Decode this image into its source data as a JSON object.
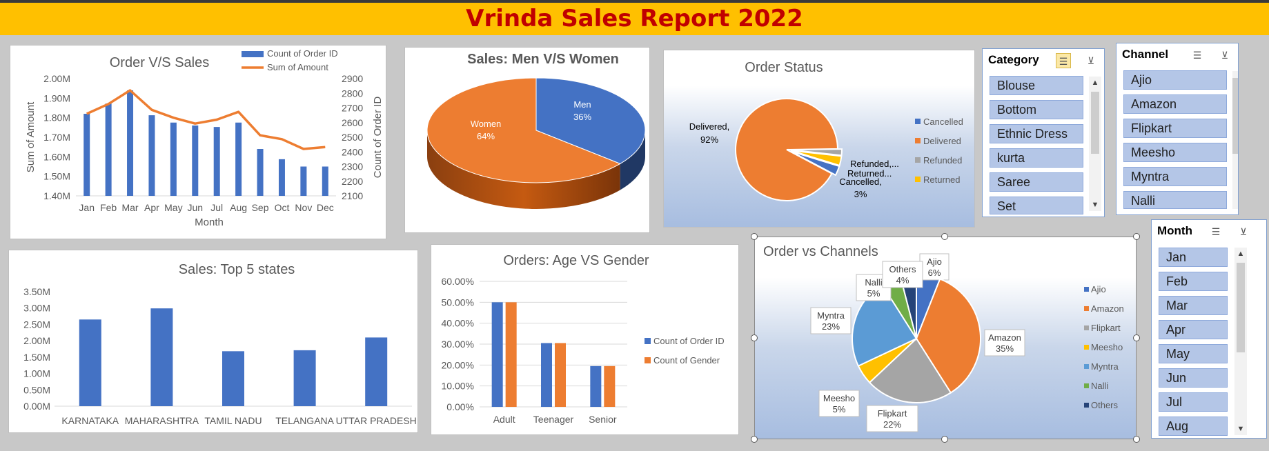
{
  "report_title": "Vrinda Sales Report 2022",
  "chart_data": [
    {
      "id": "order_vs_sales",
      "type": "bar+line",
      "title": "Order V/S  Sales",
      "xlabel": "Month",
      "ylabel": "Sum of Amount",
      "y2label": "Count of Order ID",
      "categories": [
        "Jan",
        "Feb",
        "Mar",
        "Apr",
        "May",
        "Jun",
        "Jul",
        "Aug",
        "Sep",
        "Oct",
        "Nov",
        "Dec"
      ],
      "yticks": [
        "1.40M",
        "1.50M",
        "1.60M",
        "1.70M",
        "1.80M",
        "1.90M",
        "2.00M"
      ],
      "y2ticks": [
        "2100",
        "2200",
        "2300",
        "2400",
        "2500",
        "2600",
        "2700",
        "2800",
        "2900"
      ],
      "ylim": [
        1.4,
        2.0
      ],
      "y2lim": [
        2100,
        2900
      ],
      "series": [
        {
          "name": "Count of Order ID",
          "kind": "bar",
          "axis": "right",
          "color": "#4472c4",
          "values": [
            2660,
            2730,
            2820,
            2650,
            2600,
            2580,
            2570,
            2600,
            2420,
            2350,
            2300,
            2300
          ]
        },
        {
          "name": "Sum of Amount",
          "kind": "line",
          "axis": "left",
          "color": "#ed7d31",
          "values": [
            1.82,
            1.87,
            1.94,
            1.84,
            1.8,
            1.77,
            1.79,
            1.83,
            1.71,
            1.69,
            1.64,
            1.65
          ]
        }
      ],
      "legend": "top-right"
    },
    {
      "id": "men_women",
      "type": "pie",
      "title": "Sales: Men V/S Women",
      "slices": [
        {
          "label": "Men",
          "pct_label": "36%",
          "value": 36,
          "color": "#4472c4"
        },
        {
          "label": "Women",
          "pct_label": "64%",
          "value": 64,
          "color": "#ed7d31"
        }
      ]
    },
    {
      "id": "order_status",
      "type": "pie",
      "title": "Order Status",
      "slices": [
        {
          "label": "Cancelled",
          "value": 3,
          "color": "#4472c4"
        },
        {
          "label": "Delivered",
          "value": 92,
          "color": "#ed7d31"
        },
        {
          "label": "Refunded",
          "value": 2,
          "color": "#a5a5a5"
        },
        {
          "label": "Returned",
          "value": 3,
          "color": "#ffc000"
        }
      ],
      "data_labels": [
        {
          "line1": "Delivered,",
          "line2": "92%"
        },
        {
          "line1": "Refunded,...",
          "line2": ""
        },
        {
          "line1": "Returned...",
          "line2": ""
        },
        {
          "line1": "Cancelled,",
          "line2": "3%"
        }
      ],
      "legend": "right"
    },
    {
      "id": "top_states",
      "type": "bar",
      "title": "Sales: Top 5 states",
      "categories": [
        "KARNATAKA",
        "MAHARASHTRA",
        "TAMIL NADU",
        "TELANGANA",
        "UTTAR PRADESH"
      ],
      "values": [
        2.65,
        2.99,
        1.68,
        1.71,
        2.1
      ],
      "yticks": [
        "0.00M",
        "0.50M",
        "1.00M",
        "1.50M",
        "2.00M",
        "2.50M",
        "3.00M",
        "3.50M"
      ],
      "ylim": [
        0,
        3.5
      ],
      "color": "#4472c4"
    },
    {
      "id": "age_gender",
      "type": "bar",
      "title": "Orders: Age VS Gender",
      "categories": [
        "Adult",
        "Teenager",
        "Senior"
      ],
      "yticks": [
        "0.00%",
        "10.00%",
        "20.00%",
        "30.00%",
        "40.00%",
        "50.00%",
        "60.00%"
      ],
      "ylim": [
        0,
        60
      ],
      "series": [
        {
          "name": "Count of Order ID",
          "color": "#4472c4",
          "values": [
            50,
            30.5,
            19.5
          ]
        },
        {
          "name": "Count of Gender",
          "color": "#ed7d31",
          "values": [
            50,
            30.5,
            19.5
          ]
        }
      ],
      "legend": "right"
    },
    {
      "id": "channels",
      "type": "pie",
      "title": "Order vs Channels",
      "slices": [
        {
          "label": "Ajio",
          "pct_label": "6%",
          "value": 6,
          "color": "#4472c4"
        },
        {
          "label": "Amazon",
          "pct_label": "35%",
          "value": 35,
          "color": "#ed7d31"
        },
        {
          "label": "Flipkart",
          "pct_label": "22%",
          "value": 22,
          "color": "#a5a5a5"
        },
        {
          "label": "Meesho",
          "pct_label": "5%",
          "value": 5,
          "color": "#ffc000"
        },
        {
          "label": "Myntra",
          "pct_label": "23%",
          "value": 23,
          "color": "#5b9bd5"
        },
        {
          "label": "Nalli",
          "pct_label": "5%",
          "value": 5,
          "color": "#70ad47"
        },
        {
          "label": "Others",
          "pct_label": "4%",
          "value": 4,
          "color": "#264478"
        }
      ],
      "legend": "right"
    }
  ],
  "slicers": {
    "category": {
      "title": "Category",
      "items": [
        "Blouse",
        "Bottom",
        "Ethnic Dress",
        "kurta",
        "Saree",
        "Set"
      ]
    },
    "channel": {
      "title": "Channel",
      "items": [
        "Ajio",
        "Amazon",
        "Flipkart",
        "Meesho",
        "Myntra",
        "Nalli"
      ]
    },
    "month": {
      "title": "Month",
      "items": [
        "Jan",
        "Feb",
        "Mar",
        "Apr",
        "May",
        "Jun",
        "Jul",
        "Aug"
      ]
    }
  },
  "icons": {
    "multi_select": "multi-select-icon",
    "clear_filter": "clear-filter-icon"
  }
}
